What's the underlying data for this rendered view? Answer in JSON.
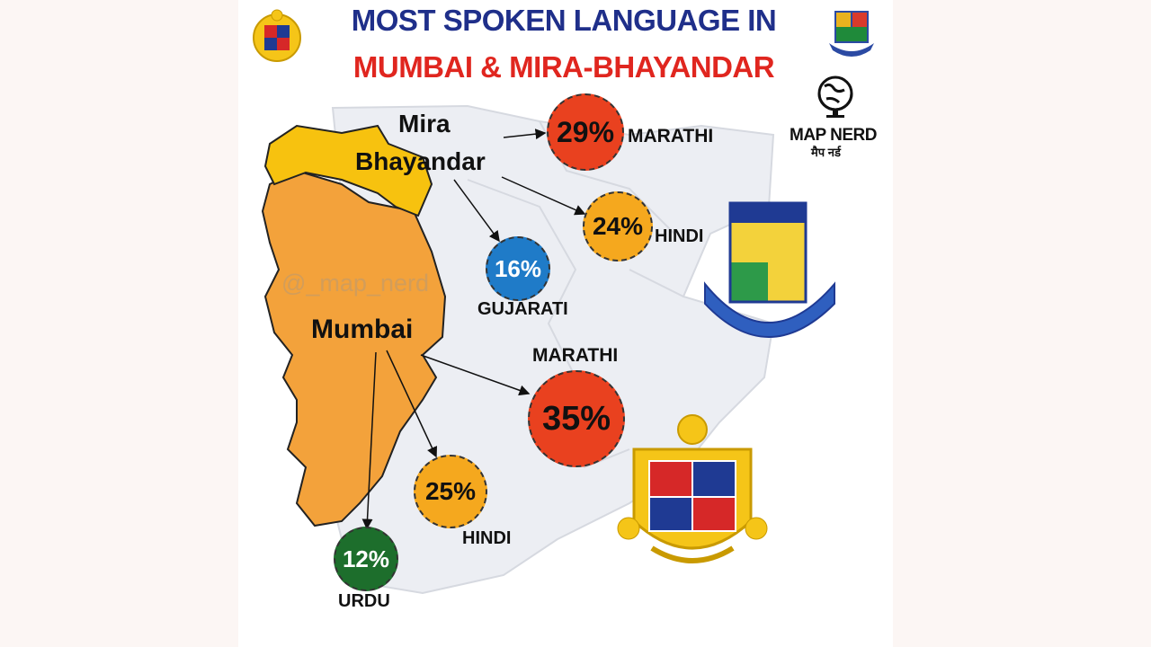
{
  "title": {
    "line1": "MOST SPOKEN LANGUAGE IN",
    "line2": "MUMBAI & MIRA-BHAYANDAR"
  },
  "regions": {
    "mira_line1": "Mira",
    "mira_line2": "Bhayandar",
    "mumbai": "Mumbai"
  },
  "watermark": "@_map_nerd",
  "mira_bhayandar_stats": [
    {
      "language": "MARATHI",
      "percent": "29%",
      "color": "#e9411f"
    },
    {
      "language": "HINDI",
      "percent": "24%",
      "color": "#f5a81e"
    },
    {
      "language": "GUJARATI",
      "percent": "16%",
      "color": "#1f7bc8"
    }
  ],
  "mumbai_stats": [
    {
      "language": "MARATHI",
      "percent": "35%",
      "color": "#e9411f"
    },
    {
      "language": "HINDI",
      "percent": "25%",
      "color": "#f5a81e"
    },
    {
      "language": "URDU",
      "percent": "12%",
      "color": "#1d6e2c"
    }
  ],
  "brand": {
    "name_en": "MAP NERD",
    "name_hi": "मैप नर्ड"
  },
  "colors": {
    "mumbai_fill": "#f3a23b",
    "mira_fill": "#f7c20f",
    "background_map": "#eceef3"
  },
  "icons": [
    "bmc-emblem-icon",
    "university-emblem-icon",
    "globe-icon",
    "mbmc-emblem-icon"
  ]
}
